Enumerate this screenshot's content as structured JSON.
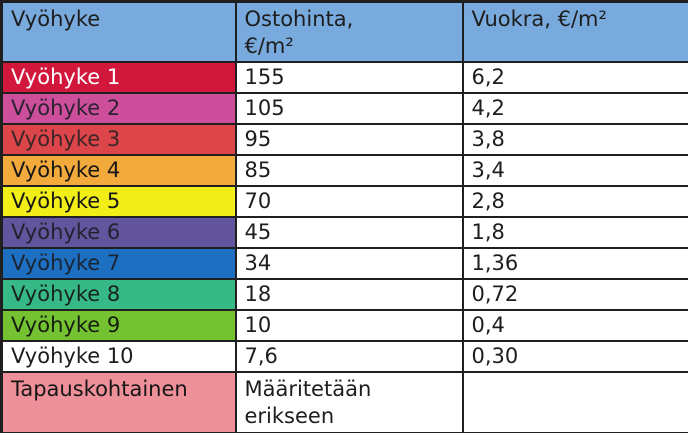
{
  "table": {
    "title_note": "Zone price table",
    "headers": [
      "Vyöhyke",
      "Ostohinta,\n€/m²",
      "Vuokra, €/m²"
    ],
    "colors": {
      "header_bg": "#79aadd",
      "border": "#1f1f1f",
      "text": "#1d1d1d"
    },
    "rows": [
      {
        "zone": "Vyöhyke 1",
        "price": "155",
        "rent": "6,2",
        "zone_bg": "#d2173d",
        "zone_fg": "#ffffff",
        "tall": false
      },
      {
        "zone": "Vyöhyke 2",
        "price": "105",
        "rent": "4,2",
        "zone_bg": "#cd4f9c",
        "zone_fg": "#2a2230",
        "tall": false
      },
      {
        "zone": "Vyöhyke 3",
        "price": "95",
        "rent": "3,8",
        "zone_bg": "#dc4549",
        "zone_fg": "#3c2526",
        "tall": false
      },
      {
        "zone": "Vyöhyke 4",
        "price": "85",
        "rent": "3,4",
        "zone_bg": "#f3aa3c",
        "zone_fg": "#161616",
        "tall": false
      },
      {
        "zone": "Vyöhyke 5",
        "price": "70",
        "rent": "2,8",
        "zone_bg": "#f1ef17",
        "zone_fg": "#161616",
        "tall": false
      },
      {
        "zone": "Vyöhyke 6",
        "price": "45",
        "rent": "1,8",
        "zone_bg": "#62559e",
        "zone_fg": "#23222e",
        "tall": false
      },
      {
        "zone": "Vyöhyke 7",
        "price": "34",
        "rent": "1,36",
        "zone_bg": "#1d6fc1",
        "zone_fg": "#1a2533",
        "tall": false
      },
      {
        "zone": "Vyöhyke 8",
        "price": "18",
        "rent": "0,72",
        "zone_bg": "#36b987",
        "zone_fg": "#17241e",
        "tall": false
      },
      {
        "zone": "Vyöhyke 9",
        "price": "10",
        "rent": "0,4",
        "zone_bg": "#74c231",
        "zone_fg": "#161c10",
        "tall": false
      },
      {
        "zone": "Vyöhyke 10",
        "price": "7,6",
        "rent": "0,30",
        "zone_bg": "#ffffff",
        "zone_fg": "#1d1d1d",
        "tall": false
      },
      {
        "zone": "Tapauskohtainen",
        "price": "Määritetään\nerikseen",
        "rent": "",
        "zone_bg": "#ee9099",
        "zone_fg": "#161616",
        "tall": true
      }
    ]
  }
}
